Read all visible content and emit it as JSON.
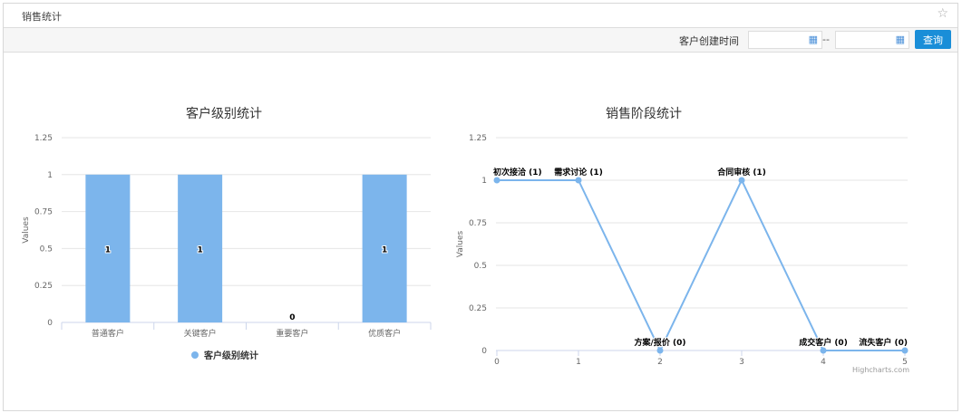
{
  "header": {
    "title": "销售统计",
    "star_icon": "star-icon"
  },
  "toolbar": {
    "date_label": "客户创建时间",
    "start_date": "",
    "end_date": "",
    "separator": "--",
    "query_label": "查询"
  },
  "colors": {
    "series": "#7cb5ec",
    "accent": "#1a8ed8"
  },
  "credits": "Highcharts.com",
  "chart_data": [
    {
      "type": "bar",
      "title": "客户级别统计",
      "ylabel": "Values",
      "categories": [
        "普通客户",
        "关键客户",
        "重要客户",
        "优质客户"
      ],
      "values": [
        1,
        1,
        0,
        1
      ],
      "ylim": [
        0,
        1.25
      ],
      "yticks": [
        "0",
        "0.25",
        "0.5",
        "0.75",
        "1",
        "1.25"
      ],
      "grid": true,
      "legend": {
        "placement": "bottom",
        "entries": [
          "客户级别统计"
        ]
      }
    },
    {
      "type": "line",
      "title": "销售阶段统计",
      "ylabel": "Values",
      "x": [
        0,
        1,
        2,
        3,
        4,
        5
      ],
      "values": [
        1,
        1,
        0,
        1,
        0,
        0
      ],
      "point_labels": [
        "初次接洽 (1)",
        "需求讨论 (1)",
        "方案/报价 (0)",
        "合同审核 (1)",
        "成交客户 (0)",
        "流失客户 (0)"
      ],
      "ylim": [
        0,
        1.25
      ],
      "yticks": [
        "0",
        "0.25",
        "0.5",
        "0.75",
        "1",
        "1.25"
      ],
      "xticks": [
        "0",
        "1",
        "2",
        "3",
        "4",
        "5"
      ],
      "grid": true
    }
  ]
}
